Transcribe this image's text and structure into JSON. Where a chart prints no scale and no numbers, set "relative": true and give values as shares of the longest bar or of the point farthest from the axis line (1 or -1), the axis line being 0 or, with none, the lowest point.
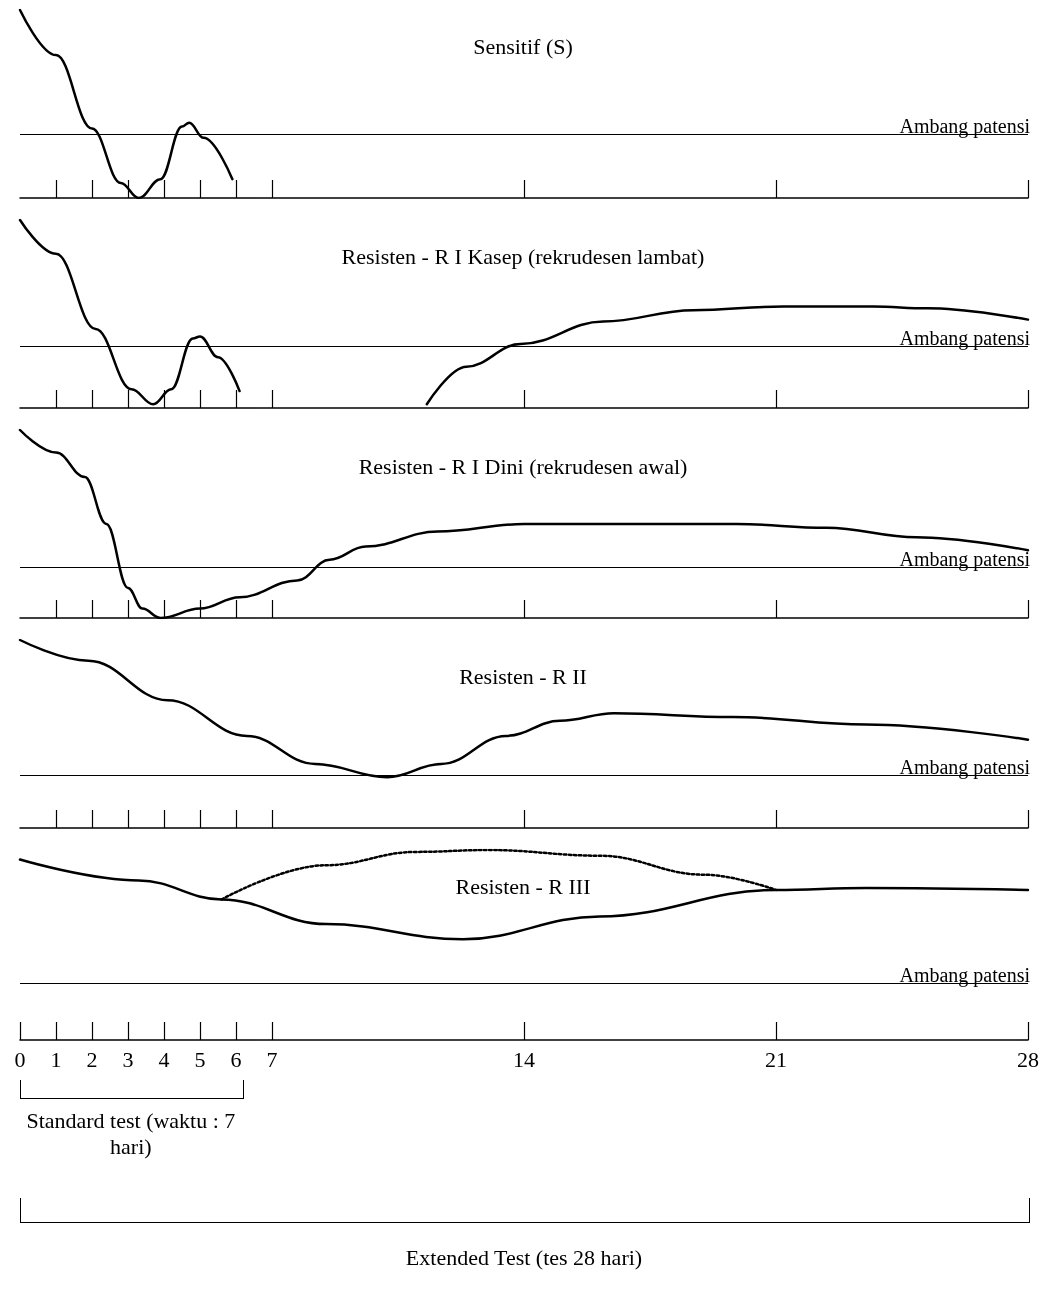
{
  "chart_data": [
    {
      "type": "line",
      "title": "Sensitif (S)",
      "relative": true,
      "marker": "none",
      "xlim": [
        0,
        28
      ],
      "tick_labels": false,
      "xticks": [
        {
          "value": 1,
          "label": null
        },
        {
          "value": 2,
          "label": null
        },
        {
          "value": 3,
          "label": null
        },
        {
          "value": 4,
          "label": null
        },
        {
          "value": 5,
          "label": null
        },
        {
          "value": 6,
          "label": null
        },
        {
          "value": 7,
          "label": null
        },
        {
          "value": 14,
          "label": null
        },
        {
          "value": 21,
          "label": null
        },
        {
          "value": 28,
          "label": null
        }
      ],
      "series": [
        {
          "color": "#000000",
          "x": [
            0,
            1,
            2,
            2.8,
            3.3,
            3.9,
            4.5,
            4.7,
            5.1,
            5.9
          ],
          "values": [
            1,
            0.76,
            0.37,
            0.08,
            0,
            0.1,
            0.38,
            0.4,
            0.32,
            0.1
          ]
        }
      ],
      "ref_lines": [
        {
          "axis": "y",
          "value": 0.34,
          "label": "Ambang patensi"
        }
      ]
    },
    {
      "type": "line",
      "title": "Resisten - R I Kasep (rekrudesen lambat)",
      "relative": true,
      "marker": "none",
      "xlim": [
        0,
        28
      ],
      "tick_labels": false,
      "xticks": [
        {
          "value": 1,
          "label": null
        },
        {
          "value": 2,
          "label": null
        },
        {
          "value": 3,
          "label": null
        },
        {
          "value": 4,
          "label": null
        },
        {
          "value": 5,
          "label": null
        },
        {
          "value": 6,
          "label": null
        },
        {
          "value": 7,
          "label": null
        },
        {
          "value": 14,
          "label": null
        },
        {
          "value": 21,
          "label": null
        },
        {
          "value": 28,
          "label": null
        }
      ],
      "series": [
        {
          "color": "#000000",
          "x": [
            0,
            1,
            2.1,
            3.1,
            3.7,
            4.2,
            4.8,
            5,
            5.5,
            6.1
          ],
          "values": [
            1,
            0.82,
            0.42,
            0.1,
            0.02,
            0.1,
            0.37,
            0.38,
            0.27,
            0.09
          ]
        },
        {
          "color": "#000000",
          "x": [
            11.3,
            12.4,
            13.9,
            16.2,
            18.7,
            21.2,
            23.7,
            25.2,
            28
          ],
          "values": [
            0.02,
            0.22,
            0.34,
            0.46,
            0.52,
            0.54,
            0.54,
            0.53,
            0.47
          ]
        }
      ],
      "ref_lines": [
        {
          "axis": "y",
          "value": 0.33,
          "label": "Ambang patensi"
        }
      ]
    },
    {
      "type": "line",
      "title": "Resisten - R I Dini (rekrudesen awal)",
      "relative": true,
      "marker": "none",
      "xlim": [
        0,
        28
      ],
      "tick_labels": false,
      "xticks": [
        {
          "value": 1,
          "label": null
        },
        {
          "value": 2,
          "label": null
        },
        {
          "value": 3,
          "label": null
        },
        {
          "value": 4,
          "label": null
        },
        {
          "value": 5,
          "label": null
        },
        {
          "value": 6,
          "label": null
        },
        {
          "value": 7,
          "label": null
        },
        {
          "value": 14,
          "label": null
        },
        {
          "value": 21,
          "label": null
        },
        {
          "value": 28,
          "label": null
        }
      ],
      "series": [
        {
          "color": "#000000",
          "x": [
            0,
            1,
            1.8,
            2.4,
            3,
            3.4,
            3.9,
            5,
            6.1,
            7.7,
            8.6,
            9.6,
            11.6,
            14,
            16.1,
            19.9,
            22.4,
            24.9,
            28
          ],
          "values": [
            1,
            0.88,
            0.75,
            0.5,
            0.16,
            0.05,
            0,
            0.05,
            0.11,
            0.2,
            0.31,
            0.38,
            0.46,
            0.5,
            0.5,
            0.5,
            0.48,
            0.43,
            0.36
          ]
        }
      ],
      "ref_lines": [
        {
          "axis": "y",
          "value": 0.27,
          "label": "Ambang patensi"
        }
      ]
    },
    {
      "type": "line",
      "title": "Resisten - R II",
      "relative": true,
      "marker": "none",
      "xlim": [
        0,
        28
      ],
      "tick_labels": false,
      "xticks": [
        {
          "value": 1,
          "label": null
        },
        {
          "value": 2,
          "label": null
        },
        {
          "value": 3,
          "label": null
        },
        {
          "value": 4,
          "label": null
        },
        {
          "value": 5,
          "label": null
        },
        {
          "value": 6,
          "label": null
        },
        {
          "value": 7,
          "label": null
        },
        {
          "value": 14,
          "label": null
        },
        {
          "value": 21,
          "label": null
        },
        {
          "value": 28,
          "label": null
        }
      ],
      "series": [
        {
          "color": "#000000",
          "x": [
            0,
            1.9,
            4.1,
            6.3,
            8.2,
            10.2,
            11.7,
            13.5,
            15,
            16.5,
            19.8,
            23.5,
            28
          ],
          "values": [
            1,
            0.89,
            0.68,
            0.49,
            0.34,
            0.27,
            0.34,
            0.49,
            0.57,
            0.61,
            0.59,
            0.55,
            0.47
          ]
        }
      ],
      "ref_lines": [
        {
          "axis": "y",
          "value": 0.28,
          "label": "Ambang patensi"
        }
      ]
    },
    {
      "type": "line",
      "title": "Resisten - R III",
      "relative": true,
      "marker": "none",
      "xlim": [
        0,
        28
      ],
      "tick_labels": "x",
      "xticks": [
        0,
        1,
        2,
        3,
        4,
        5,
        6,
        7,
        14,
        21,
        28
      ],
      "series": [
        {
          "color": "#000000",
          "x": [
            0,
            3.3,
            5.6,
            8.5,
            12.3,
            16.1,
            21,
            23.5,
            28
          ],
          "values": [
            0.95,
            0.84,
            0.74,
            0.61,
            0.53,
            0.65,
            0.79,
            0.8,
            0.79
          ]
        },
        {
          "color": "#000000",
          "line_style": "dotted",
          "x": [
            5.6,
            8.5,
            11,
            13,
            16.1,
            19,
            21
          ],
          "values": [
            0.74,
            0.92,
            0.99,
            1,
            0.97,
            0.87,
            0.79
          ]
        }
      ],
      "ref_lines": [
        {
          "axis": "y",
          "value": 0.3,
          "label": "Ambang patensi"
        }
      ],
      "annotations": [
        "Standard test (waktu : 7 hari)",
        "Extended Test (tes 28 hari)"
      ]
    }
  ]
}
